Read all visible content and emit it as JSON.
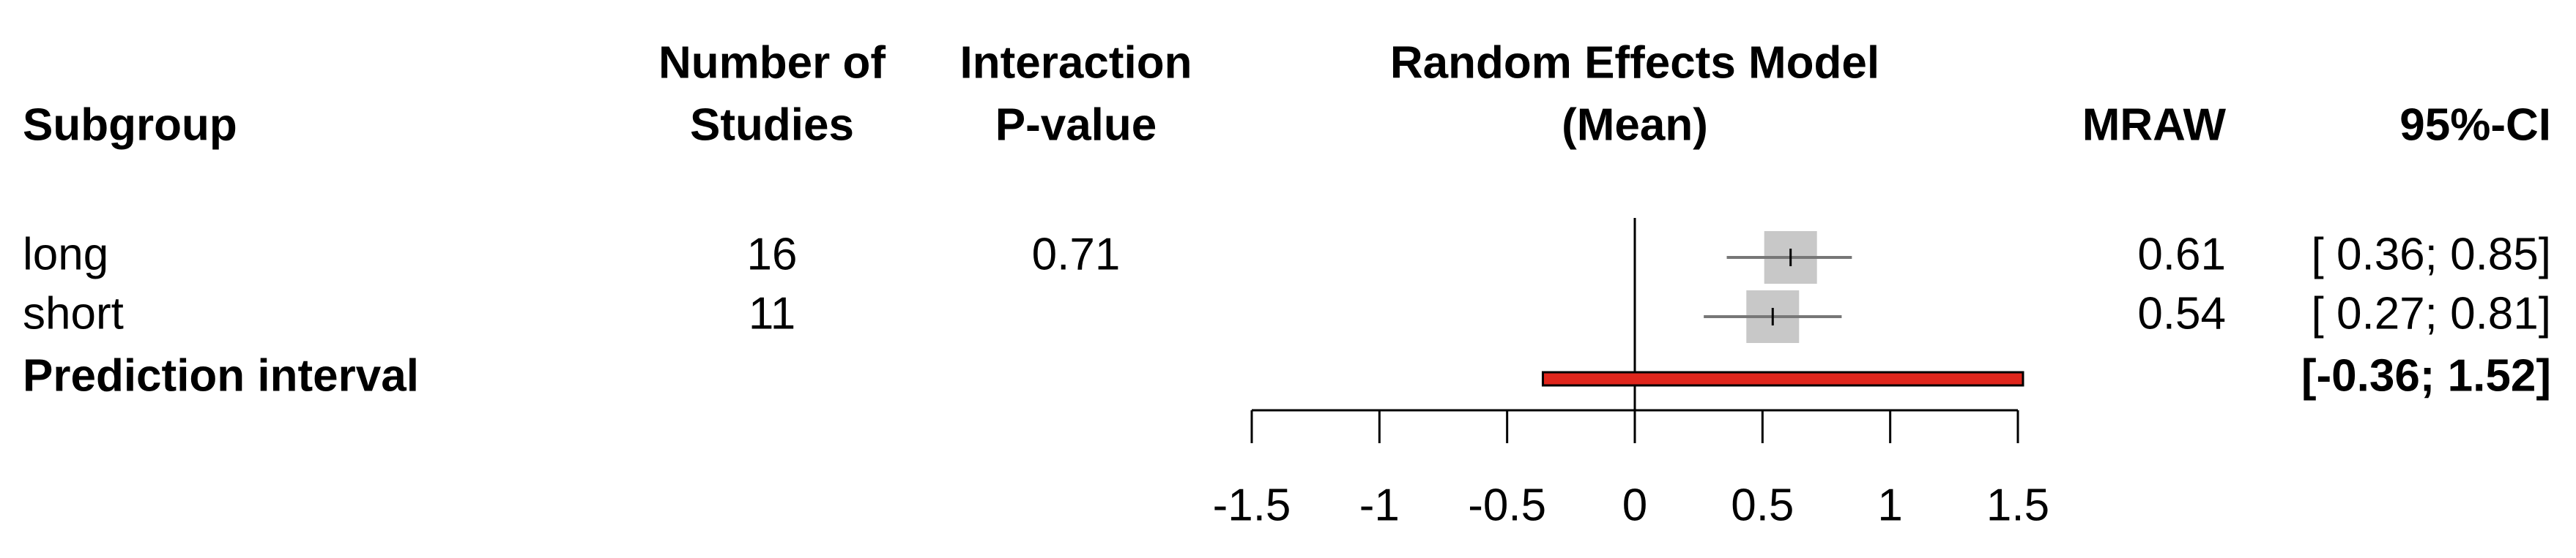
{
  "chart_data": {
    "type": "forest",
    "columns": {
      "subgroup": [
        "Subgroup"
      ],
      "studies": [
        "Number of",
        "Studies"
      ],
      "p_value": [
        "Interaction",
        "P-value"
      ],
      "plot": [
        "Random Effects Model",
        "(Mean)"
      ],
      "estimate": [
        "MRAW"
      ],
      "ci": [
        "95%-CI"
      ]
    },
    "rows": [
      {
        "name": "long",
        "studies": 16,
        "p_value": 0.71,
        "value": 0.61,
        "ci": [
          0.36,
          0.85
        ],
        "ci_label": "[ 0.36; 0.85]"
      },
      {
        "name": "short",
        "studies": 11,
        "value": 0.54,
        "ci": [
          0.27,
          0.81
        ],
        "ci_label": "[ 0.27; 0.81]"
      }
    ],
    "prediction": {
      "name": "Prediction interval",
      "ci": [
        -0.36,
        1.52
      ],
      "ci_label": "[-0.36; 1.52]",
      "color": "#e0261c"
    },
    "square_color": "#c8c8c8",
    "reference": 0,
    "xlim": [
      -1.5,
      1.5
    ],
    "xticks": [
      -1.5,
      -1,
      -0.5,
      0,
      0.5,
      1,
      1.5
    ]
  }
}
